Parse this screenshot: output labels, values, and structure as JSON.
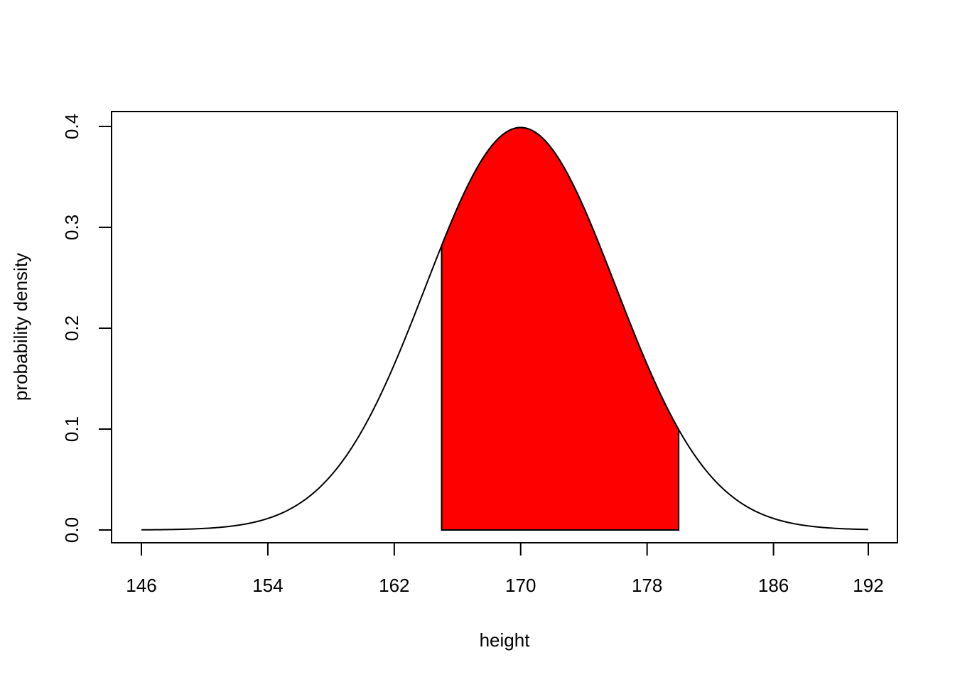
{
  "chart_data": {
    "type": "area",
    "title": "",
    "xlabel": "height",
    "ylabel": "probability density",
    "xlim": [
      146,
      192
    ],
    "ylim": [
      0,
      0.4
    ],
    "x_ticks": [
      146,
      154,
      162,
      170,
      178,
      186,
      192
    ],
    "y_ticks": [
      0.0,
      0.1,
      0.2,
      0.3,
      0.4
    ],
    "y_tick_labels": [
      "0.0",
      "0.1",
      "0.2",
      "0.3",
      "0.4"
    ],
    "grid": false,
    "legend": "none",
    "curve": {
      "distribution": "normal",
      "mean": 170,
      "sd": 6,
      "density_scale": 6,
      "x_range": [
        146,
        192
      ]
    },
    "shaded_region": {
      "from": 165,
      "to": 180,
      "fill_color": "#ff0000"
    },
    "line_color": "#000000"
  }
}
